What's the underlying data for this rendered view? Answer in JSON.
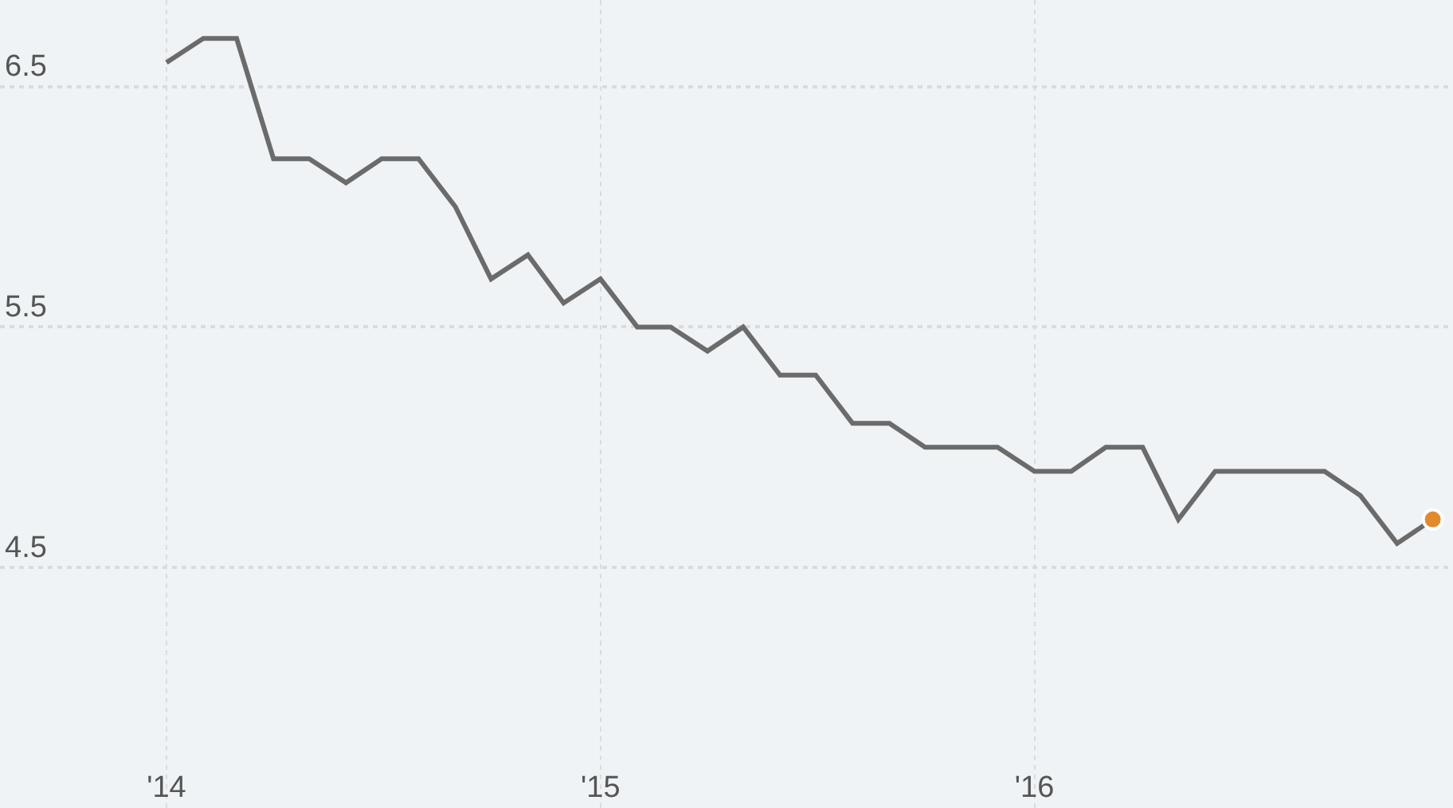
{
  "chart_data": {
    "type": "line",
    "x": [
      "2014-01",
      "2014-02",
      "2014-03",
      "2014-04",
      "2014-05",
      "2014-06",
      "2014-07",
      "2014-08",
      "2014-09",
      "2014-10",
      "2014-11",
      "2014-12",
      "2015-01",
      "2015-02",
      "2015-03",
      "2015-04",
      "2015-05",
      "2015-06",
      "2015-07",
      "2015-08",
      "2015-09",
      "2015-10",
      "2015-11",
      "2015-12",
      "2016-01",
      "2016-02",
      "2016-03",
      "2016-04",
      "2016-05",
      "2016-06",
      "2016-07",
      "2016-08",
      "2016-09",
      "2016-10",
      "2016-11",
      "2016-12"
    ],
    "series": [
      {
        "color": "#6b6b6b",
        "values": [
          6.6,
          6.7,
          6.7,
          6.2,
          6.2,
          6.1,
          6.2,
          6.2,
          6.0,
          5.7,
          5.8,
          5.6,
          5.7,
          5.5,
          5.5,
          5.4,
          5.5,
          5.3,
          5.3,
          5.1,
          5.1,
          5.0,
          5.0,
          5.0,
          4.9,
          4.9,
          5.0,
          5.0,
          4.7,
          4.9,
          4.9,
          4.9,
          4.9,
          4.8,
          4.6,
          4.7
        ]
      },
      {
        "type": "scatter",
        "color": "#e08a2c",
        "x": [
          "2016-12"
        ],
        "values": [
          4.7
        ],
        "marker": "circle"
      }
    ],
    "xlim": [
      "2013-08-14",
      "2016-12-18"
    ],
    "xticks": [
      {
        "value": "2014-01",
        "label": "'14"
      },
      {
        "value": "2015-01",
        "label": "'15"
      },
      {
        "value": "2016-01",
        "label": "'16"
      }
    ],
    "ylim": [
      3.5,
      6.86
    ],
    "yticks": [
      4.5,
      5.5,
      6.5
    ],
    "grid": true,
    "marker": "none",
    "line_style": "solid"
  }
}
